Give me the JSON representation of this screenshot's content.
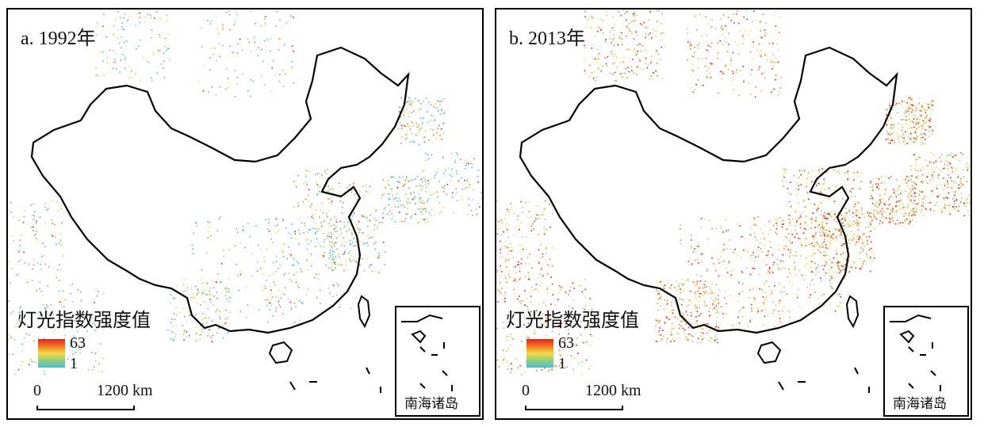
{
  "panels": [
    {
      "label": "a. 1992年",
      "legend_title": "灯光指数强度值",
      "legend_max": "63",
      "legend_min": "1",
      "scale_zero": "0",
      "scale_max": "1200 km",
      "inset_label": "南海诸岛",
      "year": 1992,
      "intensity_level": "low"
    },
    {
      "label": "b. 2013年",
      "legend_title": "灯光指数强度值",
      "legend_max": "63",
      "legend_min": "1",
      "scale_zero": "0",
      "scale_max": "1200 km",
      "inset_label": "南海诸岛",
      "year": 2013,
      "intensity_level": "high"
    }
  ],
  "colors": {
    "high": "#e51f1f",
    "mid_high": "#f07a1e",
    "mid": "#f4d94a",
    "mid_low": "#9fd36c",
    "low": "#4bbcd6",
    "border": "#000000"
  }
}
